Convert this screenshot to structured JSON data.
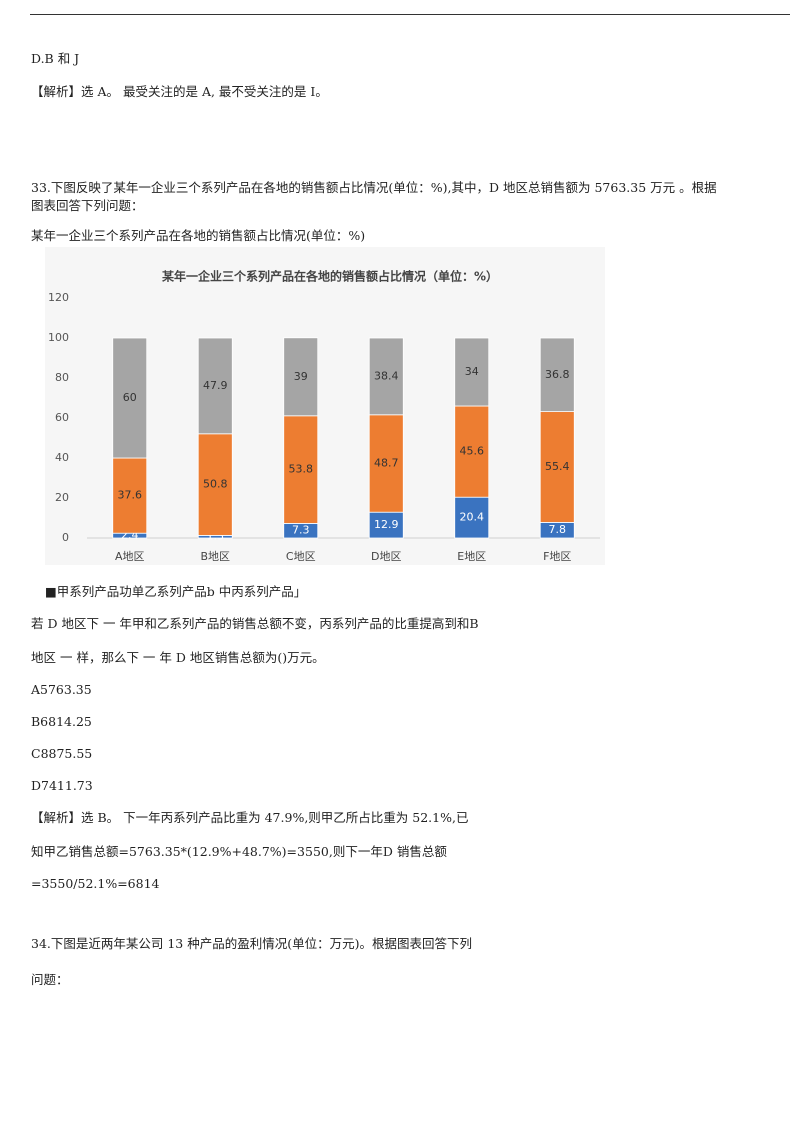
{
  "doc": {
    "prev_option": "D.B 和 J",
    "prev_analysis": "【解析】选 A。 最受关注的是 A, 最不受关注的是 I。",
    "q33_line1": "33.下图反映了某年一企业三个系列产品在各地的销售额占比情况(单位：%),其中，D 地区总销售额为 5763.35 万元 。根据",
    "q33_line2": "图表回答下列问题：",
    "chart_caption": "某年一企业三个系列产品在各地的销售额占比情况(单位：%)",
    "legend_line": "■甲系列产品功单乙系列产品b 中丙系列产品」",
    "q33_line3": "若 D 地区下 一 年甲和乙系列产品的销售总额不变，丙系列产品的比重提高到和B",
    "q33_line4": "地区 一 样，那么下 一 年 D 地区销售总额为()万元。",
    "options": [
      "A5763.35",
      "B6814.25",
      "C8875.55",
      "D7411.73"
    ],
    "analysis": [
      "【解析】选 B。 下一年丙系列产品比重为 47.9%,则甲乙所占比重为 52.1%,已",
      "知甲乙销售总额=5763.35*(12.9%+48.7%)=3550,则下一年D 销售总额",
      "=3550/52.1%=6814"
    ],
    "q34_line1": "34.下图是近两年某公司 13 种产品的盈利情况(单位：万元)。根据图表回答下列",
    "q34_line2": "问题："
  },
  "chart_data": {
    "type": "stacked_bar",
    "title": "某年一企业三个系列产品在各地的销售额占比情况（单位：%）",
    "categories": [
      "A地区",
      "B地区",
      "C地区",
      "D地区",
      "E地区",
      "F地区"
    ],
    "series": [
      {
        "color": "#3a73c0",
        "values": [
          2.4,
          1.3,
          7.3,
          12.9,
          20.4,
          7.8
        ]
      },
      {
        "color": "#ed7d31",
        "values": [
          37.6,
          50.8,
          53.8,
          48.7,
          45.6,
          55.4
        ]
      },
      {
        "color": "#a5a5a5",
        "values": [
          60,
          47.9,
          39,
          38.4,
          34,
          36.8
        ]
      }
    ],
    "ylim": [
      0,
      120
    ],
    "yticks": [
      0,
      20,
      40,
      60,
      80,
      100,
      120
    ]
  }
}
